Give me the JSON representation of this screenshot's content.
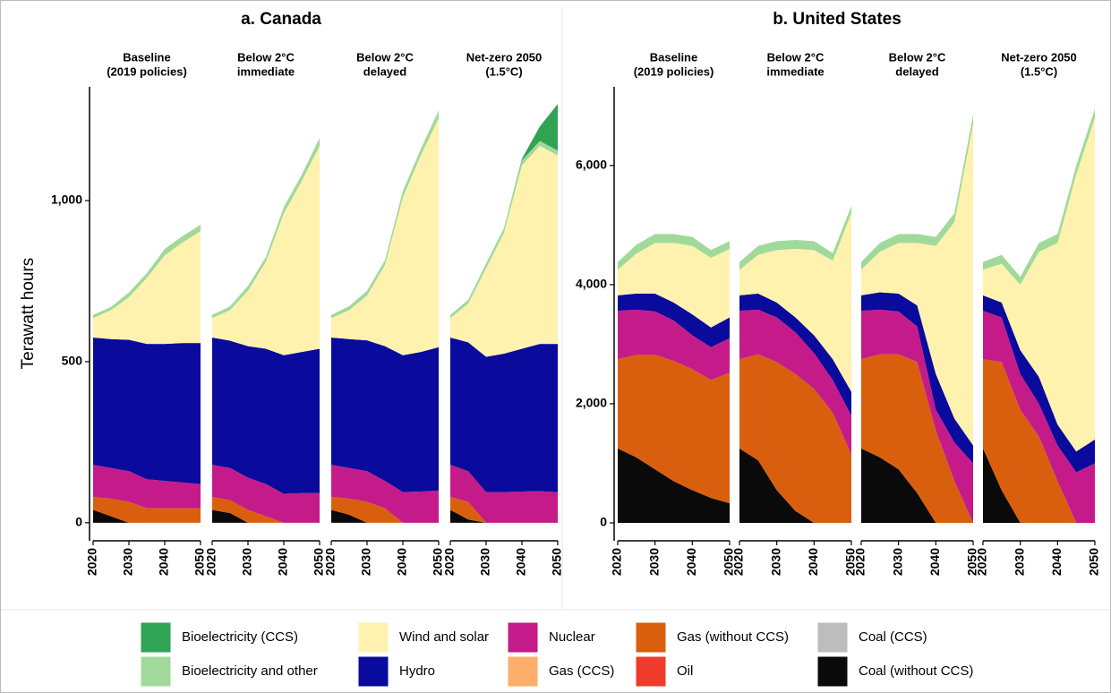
{
  "chart_data": {
    "type": "area",
    "stacked": true,
    "grid": false,
    "y_label": "Terawatt hours",
    "x": [
      2020,
      2025,
      2030,
      2035,
      2040,
      2045,
      2050
    ],
    "xlim": [
      2020,
      2050
    ],
    "xticks": [
      2020,
      2030,
      2040,
      2050
    ],
    "series": [
      {
        "name": "Bioelectricity (CCS)",
        "color": "#31a354"
      },
      {
        "name": "Bioelectricity and other",
        "color": "#a1d99b"
      },
      {
        "name": "Wind and solar",
        "color": "#fff2ae"
      },
      {
        "name": "Hydro",
        "color": "#0a0a9c"
      },
      {
        "name": "Nuclear",
        "color": "#c51b8a"
      },
      {
        "name": "Gas (CCS)",
        "color": "#fdae6b"
      },
      {
        "name": "Gas (without CCS)",
        "color": "#d95f0e"
      },
      {
        "name": "Oil",
        "color": "#ef3b2c"
      },
      {
        "name": "Coal (CCS)",
        "color": "#bdbdbd"
      },
      {
        "name": "Coal (without CCS)",
        "color": "#0a0a0a"
      }
    ],
    "panels": [
      {
        "title": "a. Canada",
        "ylim": [
          -56,
          1353
        ],
        "yticks": [
          0,
          500,
          {
            "value": 1000,
            "label": "1,000"
          }
        ],
        "facets": [
          {
            "title": [
              "Baseline",
              "(2019 policies)"
            ],
            "values": [
              [
                0,
                0,
                0,
                0,
                0,
                0,
                0
              ],
              [
                10,
                10,
                15,
                15,
                20,
                20,
                20
              ],
              [
                60,
                90,
                132,
                205,
                275,
                312,
                347
              ],
              [
                395,
                400,
                408,
                420,
                425,
                433,
                438
              ],
              [
                100,
                95,
                95,
                90,
                85,
                80,
                75
              ],
              [
                0,
                0,
                0,
                0,
                0,
                0,
                0
              ],
              [
                40,
                55,
                65,
                45,
                45,
                45,
                45
              ],
              [
                0,
                0,
                0,
                0,
                0,
                0,
                0
              ],
              [
                0,
                0,
                0,
                0,
                0,
                0,
                0
              ],
              [
                40,
                20,
                0,
                0,
                0,
                0,
                0
              ]
            ]
          },
          {
            "title": [
              "Below 2°C",
              "immediate"
            ],
            "values": [
              [
                0,
                0,
                0,
                0,
                0,
                0,
                0
              ],
              [
                10,
                12,
                15,
                15,
                20,
                20,
                25
              ],
              [
                60,
                95,
                172,
                270,
                440,
                530,
                630
              ],
              [
                395,
                395,
                408,
                420,
                430,
                438,
                448
              ],
              [
                100,
                100,
                100,
                100,
                90,
                92,
                92
              ],
              [
                0,
                0,
                0,
                0,
                0,
                0,
                0
              ],
              [
                40,
                40,
                40,
                20,
                0,
                0,
                0
              ],
              [
                0,
                0,
                0,
                0,
                0,
                0,
                0
              ],
              [
                0,
                0,
                0,
                0,
                0,
                0,
                0
              ],
              [
                40,
                30,
                0,
                0,
                0,
                0,
                0
              ]
            ]
          },
          {
            "title": [
              "Below 2°C",
              "delayed"
            ],
            "values": [
              [
                0,
                0,
                0,
                0,
                0,
                0,
                0
              ],
              [
                10,
                12,
                15,
                15,
                20,
                20,
                25
              ],
              [
                60,
                90,
                139,
                252,
                490,
                610,
                710
              ],
              [
                395,
                400,
                406,
                418,
                425,
                433,
                445
              ],
              [
                100,
                95,
                95,
                85,
                95,
                97,
                100
              ],
              [
                0,
                0,
                0,
                0,
                0,
                0,
                0
              ],
              [
                40,
                50,
                65,
                45,
                0,
                0,
                0
              ],
              [
                0,
                0,
                0,
                0,
                0,
                0,
                0
              ],
              [
                0,
                0,
                0,
                0,
                0,
                0,
                0
              ],
              [
                40,
                25,
                0,
                0,
                0,
                0,
                0
              ]
            ]
          },
          {
            "title": [
              "Net-zero 2050",
              "(1.5°C)"
            ],
            "values": [
              [
                0,
                0,
                0,
                0,
                5,
                45,
                145
              ],
              [
                10,
                12,
                15,
                15,
                15,
                15,
                15
              ],
              [
                60,
                120,
                275,
                375,
                570,
                615,
                585
              ],
              [
                395,
                400,
                420,
                430,
                443,
                457,
                460
              ],
              [
                100,
                95,
                95,
                95,
                97,
                98,
                95
              ],
              [
                0,
                0,
                0,
                0,
                0,
                0,
                0
              ],
              [
                40,
                55,
                0,
                0,
                0,
                0,
                0
              ],
              [
                0,
                0,
                0,
                0,
                0,
                0,
                0
              ],
              [
                0,
                0,
                0,
                0,
                0,
                0,
                0
              ],
              [
                40,
                10,
                0,
                0,
                0,
                0,
                0
              ]
            ]
          }
        ]
      },
      {
        "title": "b. United States",
        "ylim": [
          -300,
          7320
        ],
        "yticks": [
          0,
          {
            "value": 2000,
            "label": "2,000"
          },
          {
            "value": 4000,
            "label": "4,000"
          },
          {
            "value": 6000,
            "label": "6,000"
          }
        ],
        "facets": [
          {
            "title": [
              "Baseline",
              "(2019 policies)"
            ],
            "values": [
              [
                0,
                0,
                0,
                0,
                0,
                0,
                0
              ],
              [
                130,
                150,
                150,
                150,
                150,
                130,
                130
              ],
              [
                430,
                670,
                850,
                1000,
                1150,
                1170,
                1150
              ],
              [
                260,
                270,
                300,
                300,
                350,
                330,
                350
              ],
              [
                810,
                760,
                730,
                680,
                570,
                550,
                580
              ],
              [
                0,
                0,
                0,
                0,
                0,
                0,
                0
              ],
              [
                1500,
                1720,
                1920,
                2020,
                2030,
                1980,
                2190
              ],
              [
                0,
                0,
                0,
                0,
                0,
                0,
                0
              ],
              [
                0,
                0,
                0,
                0,
                0,
                0,
                0
              ],
              [
                1250,
                1100,
                900,
                700,
                550,
                420,
                330
              ]
            ]
          },
          {
            "title": [
              "Below 2°C",
              "immediate"
            ],
            "values": [
              [
                0,
                0,
                0,
                0,
                0,
                0,
                0
              ],
              [
                130,
                150,
                150,
                150,
                150,
                130,
                120
              ],
              [
                430,
                650,
                880,
                1150,
                1430,
                1650,
                3000
              ],
              [
                260,
                270,
                250,
                250,
                300,
                350,
                400
              ],
              [
                810,
                750,
                750,
                700,
                600,
                550,
                650
              ],
              [
                0,
                0,
                0,
                0,
                0,
                0,
                0
              ],
              [
                1500,
                1780,
                2150,
                2300,
                2250,
                1850,
                1150
              ],
              [
                0,
                0,
                0,
                0,
                0,
                0,
                0
              ],
              [
                0,
                0,
                0,
                0,
                0,
                0,
                0
              ],
              [
                1250,
                1050,
                550,
                200,
                0,
                0,
                0
              ]
            ]
          },
          {
            "title": [
              "Below 2°C",
              "delayed"
            ],
            "values": [
              [
                0,
                0,
                0,
                0,
                0,
                0,
                0
              ],
              [
                130,
                150,
                150,
                150,
                150,
                150,
                150
              ],
              [
                430,
                680,
                850,
                1050,
                2150,
                3300,
                5400
              ],
              [
                260,
                290,
                300,
                350,
                600,
                400,
                300
              ],
              [
                810,
                750,
                720,
                600,
                350,
                650,
                1000
              ],
              [
                0,
                0,
                0,
                0,
                0,
                0,
                0
              ],
              [
                1500,
                1730,
                1930,
                2200,
                1550,
                700,
                0
              ],
              [
                0,
                0,
                0,
                0,
                0,
                0,
                0
              ],
              [
                0,
                0,
                0,
                0,
                0,
                0,
                0
              ],
              [
                1250,
                1100,
                900,
                500,
                0,
                0,
                0
              ]
            ]
          },
          {
            "title": [
              "Net-zero 2050",
              "(1.5°C)"
            ],
            "values": [
              [
                0,
                0,
                0,
                0,
                0,
                0,
                0
              ],
              [
                130,
                150,
                130,
                150,
                150,
                150,
                150
              ],
              [
                430,
                650,
                1100,
                2100,
                3050,
                4650,
                5400
              ],
              [
                260,
                250,
                400,
                450,
                350,
                350,
                400
              ],
              [
                810,
                750,
                600,
                550,
                600,
                850,
                1000
              ],
              [
                0,
                0,
                0,
                0,
                0,
                0,
                0
              ],
              [
                1500,
                2150,
                1900,
                1450,
                700,
                0,
                0
              ],
              [
                0,
                0,
                0,
                0,
                0,
                0,
                0
              ],
              [
                0,
                0,
                0,
                0,
                0,
                0,
                0
              ],
              [
                1250,
                550,
                0,
                0,
                0,
                0,
                0
              ]
            ]
          }
        ]
      }
    ]
  }
}
